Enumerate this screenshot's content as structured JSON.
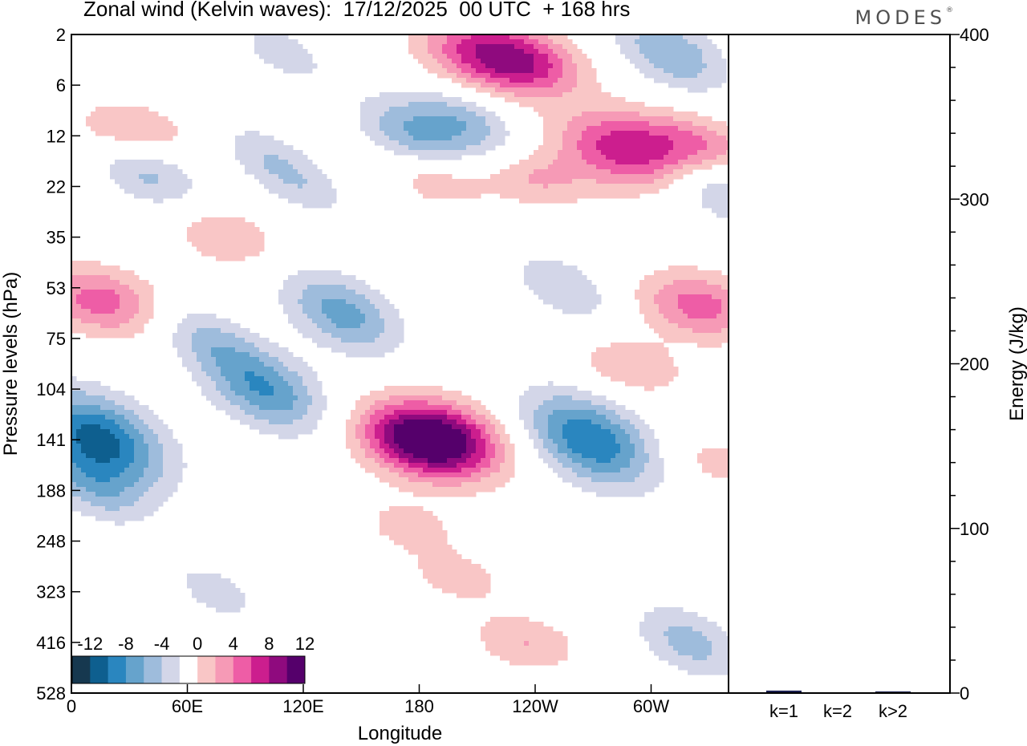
{
  "header": {
    "title": "Zonal wind (Kelvin waves):  17/12/2025  00 UTC  + 168 hrs",
    "brand": "MODES"
  },
  "colors": {
    "neg": [
      "#16384f",
      "#0e5f8f",
      "#2a86bf",
      "#66a3cc",
      "#9ebcdc",
      "#d3d6e8"
    ],
    "white": "#ffffff",
    "pos": [
      "#f9c6c6",
      "#f69ab6",
      "#ee5da6",
      "#cc1e8e",
      "#8f0a7e",
      "#55006b"
    ]
  },
  "chart_data": [
    {
      "type": "heatmap",
      "xlabel": "Longitude",
      "ylabel": "Pressure levels (hPa)",
      "x_ticks": [
        "0",
        "60E",
        "120E",
        "180",
        "120W",
        "60W"
      ],
      "y_ticks": [
        "2",
        "6",
        "12",
        "22",
        "35",
        "53",
        "75",
        "104",
        "141",
        "188",
        "248",
        "323",
        "416",
        "528"
      ],
      "colorbar": {
        "labels": [
          "-12",
          "-8",
          "-4",
          "0",
          "4",
          "8",
          "12"
        ],
        "levels": [
          -14,
          -12,
          -10,
          -8,
          -6,
          -4,
          -2,
          2,
          4,
          6,
          8,
          10,
          12,
          14
        ]
      },
      "features": [
        {
          "sign": -1,
          "lon": 14,
          "level": 141,
          "max": 11
        },
        {
          "sign": -1,
          "lon": 12,
          "level": 188,
          "max": 4
        },
        {
          "sign": -1,
          "lon": 100,
          "level": 104,
          "max": 8
        },
        {
          "sign": -1,
          "lon": 140,
          "level": 63,
          "max": 7
        },
        {
          "sign": -1,
          "lon": 70,
          "level": 75,
          "max": 4
        },
        {
          "sign": -1,
          "lon": 268,
          "level": 141,
          "max": 10
        },
        {
          "sign": -1,
          "lon": 255,
          "level": 53,
          "max": 4
        },
        {
          "sign": -1,
          "lon": 178,
          "level": 12,
          "max": 6
        },
        {
          "sign": -1,
          "lon": 205,
          "level": 10,
          "max": 5
        },
        {
          "sign": -1,
          "lon": 36,
          "level": 17,
          "max": 6
        },
        {
          "sign": -1,
          "lon": 100,
          "level": 15,
          "max": 3
        },
        {
          "sign": -1,
          "lon": 310,
          "level": 3,
          "max": 6
        },
        {
          "sign": -1,
          "lon": 75,
          "level": 323,
          "max": 3
        },
        {
          "sign": -1,
          "lon": 320,
          "level": 416,
          "max": 5
        },
        {
          "sign": -1,
          "lon": 335,
          "level": 22,
          "max": 5
        },
        {
          "sign": -1,
          "lon": 110,
          "level": 3,
          "max": 3
        },
        {
          "sign": -1,
          "lon": 120,
          "level": 22,
          "max": 3
        },
        {
          "sign": 1,
          "lon": 180,
          "level": 141,
          "max": 7
        },
        {
          "sign": 1,
          "lon": 190,
          "level": 141,
          "max": 10
        },
        {
          "sign": 1,
          "lon": 175,
          "level": 230,
          "max": 3
        },
        {
          "sign": 1,
          "lon": 235,
          "level": 416,
          "max": 4
        },
        {
          "sign": 1,
          "lon": 200,
          "level": 300,
          "max": 3
        },
        {
          "sign": 1,
          "lon": 15,
          "level": 58,
          "max": 7
        },
        {
          "sign": 1,
          "lon": 215,
          "level": 3,
          "max": 9
        },
        {
          "sign": 1,
          "lon": 240,
          "level": 4,
          "max": 5
        },
        {
          "sign": 1,
          "lon": 285,
          "level": 14,
          "max": 9
        },
        {
          "sign": 1,
          "lon": 325,
          "level": 14,
          "max": 6
        },
        {
          "sign": 1,
          "lon": 325,
          "level": 60,
          "max": 7
        },
        {
          "sign": 1,
          "lon": 290,
          "level": 90,
          "max": 4
        },
        {
          "sign": 1,
          "lon": 190,
          "level": 20,
          "max": 4
        },
        {
          "sign": 1,
          "lon": 240,
          "level": 20,
          "max": 4
        },
        {
          "sign": 1,
          "lon": 30,
          "level": 12,
          "max": 6
        },
        {
          "sign": 1,
          "lon": 80,
          "level": 35,
          "max": 4
        },
        {
          "sign": 1,
          "lon": 335,
          "level": 160,
          "max": 3
        }
      ]
    },
    {
      "type": "bar",
      "categories": [
        "k=1",
        "k=2",
        "k>2"
      ],
      "values": [
        1.5,
        0.2,
        1.0
      ],
      "ylabel": "Energy (J/kg)",
      "ylim": [
        0,
        400
      ],
      "y_ticks": [
        "0",
        "100",
        "200",
        "300",
        "400"
      ],
      "bar_color": "#1a1f4f"
    }
  ]
}
